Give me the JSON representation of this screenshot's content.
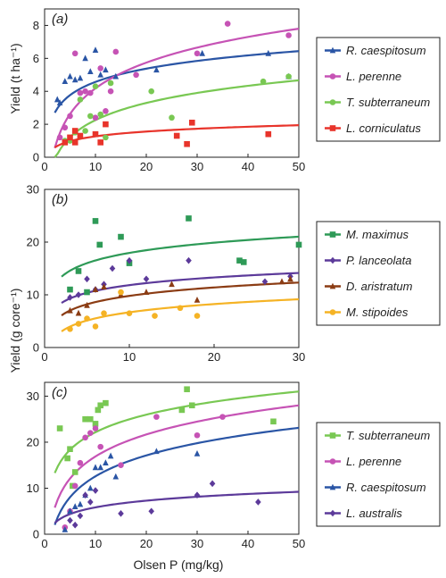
{
  "figure": {
    "ylabel_top": "Yield (t ha⁻¹)",
    "ylabel_bottom": "Yield (g core⁻¹)",
    "xlabel": "Olsen P (mg/kg)"
  },
  "chart_data": [
    {
      "panel": "(a)",
      "type": "scatter",
      "xlim": [
        0,
        50
      ],
      "ylim": [
        0,
        9
      ],
      "xticks": [
        0,
        10,
        20,
        30,
        40,
        50
      ],
      "yticks": [
        0,
        2,
        4,
        6,
        8
      ],
      "ylabel": "Yield (t ha⁻¹)",
      "legend_position": "right",
      "series": [
        {
          "name": "R. caespitosum",
          "color": "#2a55a5",
          "marker": "triangle",
          "fit": {
            "a": 1.9,
            "b": 1.16
          },
          "points": [
            [
              2.5,
              3.5
            ],
            [
              3,
              3.3
            ],
            [
              4,
              4.6
            ],
            [
              5,
              4.9
            ],
            [
              6,
              4.7
            ],
            [
              7,
              4.8
            ],
            [
              8,
              6.0
            ],
            [
              9,
              5.2
            ],
            [
              10,
              6.5
            ],
            [
              11,
              5.0
            ],
            [
              12,
              5.3
            ],
            [
              14,
              4.9
            ],
            [
              22,
              5.3
            ],
            [
              31,
              6.3
            ],
            [
              44,
              6.3
            ],
            [
              48,
              4.9
            ]
          ]
        },
        {
          "name": "L. perenne",
          "color": "#c653b5",
          "marker": "circle",
          "fit": {
            "a": -1.0,
            "b": 2.25
          },
          "points": [
            [
              3,
              1.2
            ],
            [
              4,
              1.8
            ],
            [
              5,
              2.5
            ],
            [
              6,
              6.3
            ],
            [
              7,
              3.9
            ],
            [
              8,
              4.0
            ],
            [
              9,
              3.9
            ],
            [
              10,
              2.4
            ],
            [
              11,
              5.4
            ],
            [
              12,
              2.8
            ],
            [
              13,
              4.0
            ],
            [
              14,
              6.4
            ],
            [
              18,
              5.0
            ],
            [
              30,
              6.3
            ],
            [
              36,
              8.1
            ],
            [
              48,
              7.4
            ]
          ]
        },
        {
          "name": "T. subterraneum",
          "color": "#79c853",
          "marker": "circle",
          "fit": {
            "a": -1.2,
            "b": 1.5
          },
          "points": [
            [
              4,
              1.0
            ],
            [
              5,
              1.0
            ],
            [
              6,
              1.5
            ],
            [
              7,
              3.5
            ],
            [
              8,
              1.6
            ],
            [
              9,
              2.5
            ],
            [
              10,
              4.3
            ],
            [
              11,
              2.6
            ],
            [
              12,
              1.2
            ],
            [
              13,
              4.5
            ],
            [
              21,
              4.0
            ],
            [
              25,
              2.4
            ],
            [
              43,
              4.6
            ],
            [
              48,
              4.9
            ]
          ]
        },
        {
          "name": "L. corniculatus",
          "color": "#e8342b",
          "marker": "square",
          "fit": {
            "a": 0.3,
            "b": 0.42
          },
          "points": [
            [
              4,
              0.9
            ],
            [
              5,
              1.2
            ],
            [
              6,
              0.9
            ],
            [
              6,
              1.6
            ],
            [
              7,
              1.3
            ],
            [
              10,
              1.4
            ],
            [
              11,
              0.9
            ],
            [
              12,
              2.0
            ],
            [
              26,
              1.3
            ],
            [
              28,
              0.8
            ],
            [
              29,
              2.1
            ],
            [
              44,
              1.4
            ]
          ]
        }
      ]
    },
    {
      "panel": "(b)",
      "type": "scatter",
      "xlim": [
        0,
        30
      ],
      "ylim": [
        0,
        30
      ],
      "xticks": [
        0,
        10,
        20,
        30
      ],
      "yticks": [
        0,
        10,
        20,
        30
      ],
      "ylabel": "Yield (g core⁻¹)",
      "legend_position": "right",
      "series": [
        {
          "name": "M. maximus",
          "color": "#2e9a57",
          "marker": "square",
          "fit": {
            "a": 11.5,
            "b": 2.8
          },
          "points": [
            [
              3,
              11.0
            ],
            [
              4,
              14.5
            ],
            [
              5,
              10.5
            ],
            [
              6,
              24.0
            ],
            [
              6.5,
              19.5
            ],
            [
              9,
              21.0
            ],
            [
              10,
              16.0
            ],
            [
              17,
              24.5
            ],
            [
              23,
              16.5
            ],
            [
              23.5,
              16.2
            ],
            [
              30,
              19.5
            ]
          ]
        },
        {
          "name": "P. lanceolata",
          "color": "#5c3a9a",
          "marker": "diamond",
          "fit": {
            "a": 7.0,
            "b": 2.1
          },
          "points": [
            [
              3,
              9.5
            ],
            [
              4,
              10.0
            ],
            [
              5,
              13.0
            ],
            [
              6,
              11.0
            ],
            [
              7,
              12.0
            ],
            [
              8,
              15.0
            ],
            [
              10,
              16.5
            ],
            [
              12,
              13.0
            ],
            [
              17,
              16.5
            ],
            [
              26,
              12.5
            ],
            [
              29,
              13.5
            ]
          ]
        },
        {
          "name": "D. aristratum",
          "color": "#8b3c14",
          "marker": "triangle",
          "fit": {
            "a": 4.5,
            "b": 2.3
          },
          "points": [
            [
              3,
              7.0
            ],
            [
              4,
              6.5
            ],
            [
              5,
              8.0
            ],
            [
              6,
              11.0
            ],
            [
              7,
              11.5
            ],
            [
              9,
              10.0
            ],
            [
              12,
              10.5
            ],
            [
              15,
              12.0
            ],
            [
              18,
              9.0
            ],
            [
              28,
              12.5
            ],
            [
              29,
              13.0
            ]
          ]
        },
        {
          "name": "M. stipoides",
          "color": "#f5b325",
          "marker": "circle",
          "fit": {
            "a": 1.5,
            "b": 2.25
          },
          "points": [
            [
              3,
              3.5
            ],
            [
              4,
              4.5
            ],
            [
              5,
              5.5
            ],
            [
              6,
              4.0
            ],
            [
              7,
              6.5
            ],
            [
              9,
              10.5
            ],
            [
              10,
              6.5
            ],
            [
              13,
              6.0
            ],
            [
              16,
              7.5
            ],
            [
              18,
              6.0
            ]
          ]
        }
      ]
    },
    {
      "panel": "(c)",
      "type": "scatter",
      "xlim": [
        0,
        50
      ],
      "ylim": [
        0,
        33
      ],
      "xticks": [
        0,
        10,
        20,
        30,
        40,
        50
      ],
      "yticks": [
        0,
        10,
        20,
        30
      ],
      "ylabel": "Yield (g core⁻¹)",
      "legend_position": "right",
      "series": [
        {
          "name": "T. subterraneum",
          "color": "#79c853",
          "marker": "square",
          "fit": {
            "a": 9.5,
            "b": 5.5
          },
          "points": [
            [
              3,
              23.0
            ],
            [
              4.5,
              16.5
            ],
            [
              5,
              18.5
            ],
            [
              5.5,
              10.5
            ],
            [
              6,
              13.5
            ],
            [
              8,
              25.0
            ],
            [
              9,
              25.0
            ],
            [
              10,
              24.0
            ],
            [
              10.5,
              27.0
            ],
            [
              11,
              28.0
            ],
            [
              12,
              28.5
            ],
            [
              27,
              27.0
            ],
            [
              28,
              31.5
            ],
            [
              29,
              28.0
            ],
            [
              45,
              24.5
            ]
          ]
        },
        {
          "name": "L. perenne",
          "color": "#c653b5",
          "marker": "circle",
          "fit": {
            "a": 1.0,
            "b": 6.9
          },
          "points": [
            [
              4,
              1.5
            ],
            [
              5,
              5.0
            ],
            [
              6,
              10.5
            ],
            [
              7,
              15.5
            ],
            [
              8,
              21.0
            ],
            [
              9,
              22.0
            ],
            [
              10,
              23.0
            ],
            [
              11,
              19.0
            ],
            [
              15,
              15.0
            ],
            [
              22,
              25.5
            ],
            [
              30,
              21.5
            ],
            [
              35,
              25.5
            ]
          ]
        },
        {
          "name": "R. caespitosum",
          "color": "#2a55a5",
          "marker": "triangle",
          "fit": {
            "a": -2.5,
            "b": 6.55
          },
          "points": [
            [
              4,
              1.0
            ],
            [
              5,
              5.0
            ],
            [
              6,
              6.0
            ],
            [
              7,
              6.5
            ],
            [
              8,
              8.5
            ],
            [
              9,
              10.0
            ],
            [
              10,
              14.5
            ],
            [
              11,
              14.5
            ],
            [
              12,
              15.5
            ],
            [
              13,
              17.0
            ],
            [
              14,
              12.5
            ],
            [
              22,
              18.0
            ],
            [
              30,
              17.5
            ]
          ]
        },
        {
          "name": "L. australis",
          "color": "#5c3a9a",
          "marker": "diamond",
          "fit": {
            "a": 1.0,
            "b": 2.1
          },
          "points": [
            [
              5,
              3.0
            ],
            [
              6,
              2.0
            ],
            [
              7,
              4.0
            ],
            [
              8,
              8.5
            ],
            [
              9,
              7.0
            ],
            [
              10,
              9.5
            ],
            [
              15,
              4.5
            ],
            [
              21,
              5.0
            ],
            [
              30,
              8.5
            ],
            [
              33,
              11.0
            ],
            [
              42,
              7.0
            ]
          ]
        }
      ]
    }
  ]
}
